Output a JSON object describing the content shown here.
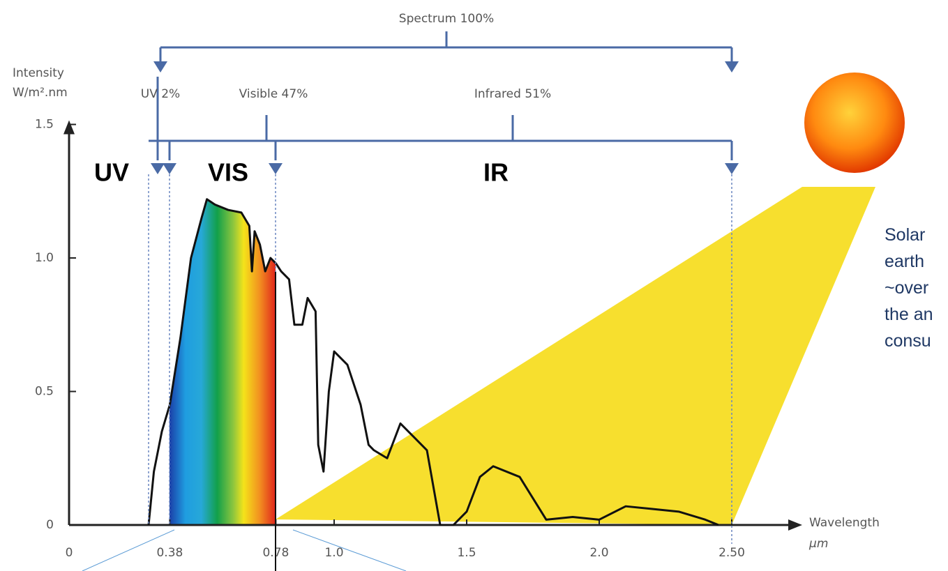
{
  "chart_data": {
    "type": "line",
    "y_label": [
      "Intensity",
      "W/m².nm"
    ],
    "x_label": [
      "Wavelength",
      "µm"
    ],
    "x": [
      0.3,
      0.32,
      0.35,
      0.38,
      0.42,
      0.46,
      0.5,
      0.52,
      0.55,
      0.6,
      0.65,
      0.68,
      0.69,
      0.7,
      0.72,
      0.74,
      0.76,
      0.78,
      0.8,
      0.83,
      0.85,
      0.88,
      0.9,
      0.93,
      0.94,
      0.96,
      0.98,
      1.0,
      1.05,
      1.1,
      1.13,
      1.15,
      1.2,
      1.25,
      1.3,
      1.35,
      1.4,
      1.45,
      1.5,
      1.55,
      1.6,
      1.7,
      1.75,
      1.8,
      1.9,
      2.0,
      2.1,
      2.2,
      2.3,
      2.4,
      2.45
    ],
    "series": [
      {
        "color": "#111111",
        "values": [
          0,
          0.2,
          0.35,
          0.45,
          0.7,
          1.0,
          1.15,
          1.22,
          1.2,
          1.18,
          1.17,
          1.12,
          0.95,
          1.1,
          1.05,
          0.95,
          1.0,
          0.98,
          0.95,
          0.92,
          0.75,
          0.75,
          0.85,
          0.8,
          0.3,
          0.2,
          0.5,
          0.65,
          0.6,
          0.45,
          0.3,
          0.28,
          0.25,
          0.38,
          0.33,
          0.28,
          0,
          0,
          0.05,
          0.18,
          0.22,
          0.18,
          0.1,
          0.02,
          0.03,
          0.02,
          0.07,
          0.06,
          0.05,
          0.02,
          0
        ]
      }
    ],
    "xlim": [
      0,
      2.75
    ],
    "ylim": [
      0,
      1.5
    ],
    "xticks": [
      0,
      0.38,
      0.78,
      {
        "value": 1,
        "label": "1.0"
      },
      1.5,
      {
        "value": 2,
        "label": "2.0"
      },
      {
        "value": 2.5,
        "label": "2.50"
      }
    ],
    "yticks": [
      0,
      0.5,
      {
        "value": 1,
        "label": "1.0"
      },
      1.5
    ],
    "annotations": {
      "spectrum": "Spectrum 100%",
      "uv_share": "UV 2%",
      "visible_share": "Visible 47%",
      "infrared_share": "Infrared 51%",
      "uv": "UV",
      "vis": "VIS",
      "ir": "IR",
      "note": [
        "Solar",
        "earth",
        "~over",
        "the an",
        "consu"
      ]
    }
  }
}
